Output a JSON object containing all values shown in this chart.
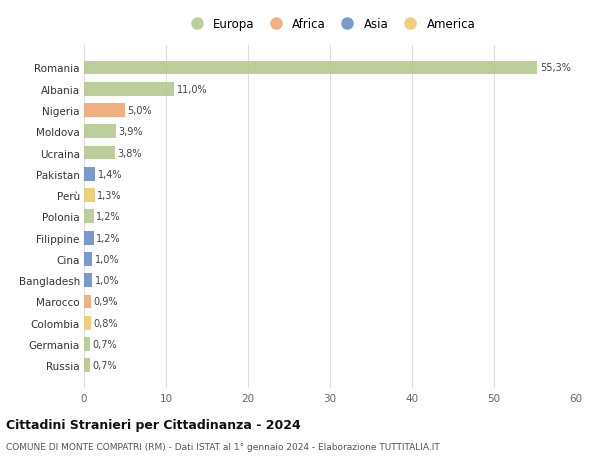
{
  "countries": [
    "Romania",
    "Albania",
    "Nigeria",
    "Moldova",
    "Ucraina",
    "Pakistan",
    "Perù",
    "Polonia",
    "Filippine",
    "Cina",
    "Bangladesh",
    "Marocco",
    "Colombia",
    "Germania",
    "Russia"
  ],
  "values": [
    55.3,
    11.0,
    5.0,
    3.9,
    3.8,
    1.4,
    1.3,
    1.2,
    1.2,
    1.0,
    1.0,
    0.9,
    0.8,
    0.7,
    0.7
  ],
  "labels": [
    "55,3%",
    "11,0%",
    "5,0%",
    "3,9%",
    "3,8%",
    "1,4%",
    "1,3%",
    "1,2%",
    "1,2%",
    "1,0%",
    "1,0%",
    "0,9%",
    "0,8%",
    "0,7%",
    "0,7%"
  ],
  "continents": [
    "Europa",
    "Europa",
    "Africa",
    "Europa",
    "Europa",
    "Asia",
    "America",
    "Europa",
    "Asia",
    "Asia",
    "Asia",
    "Africa",
    "America",
    "Europa",
    "Europa"
  ],
  "colors": {
    "Europa": "#b5c98e",
    "Africa": "#f0a875",
    "Asia": "#6b8fc9",
    "America": "#f0c96e"
  },
  "xlim": [
    0,
    60
  ],
  "xticks": [
    0,
    10,
    20,
    30,
    40,
    50,
    60
  ],
  "title": "Cittadini Stranieri per Cittadinanza - 2024",
  "subtitle": "COMUNE DI MONTE COMPATRI (RM) - Dati ISTAT al 1° gennaio 2024 - Elaborazione TUTTITALIA.IT",
  "background_color": "#ffffff",
  "grid_color": "#dddddd",
  "bar_height": 0.65,
  "legend_order": [
    "Europa",
    "Africa",
    "Asia",
    "America"
  ]
}
